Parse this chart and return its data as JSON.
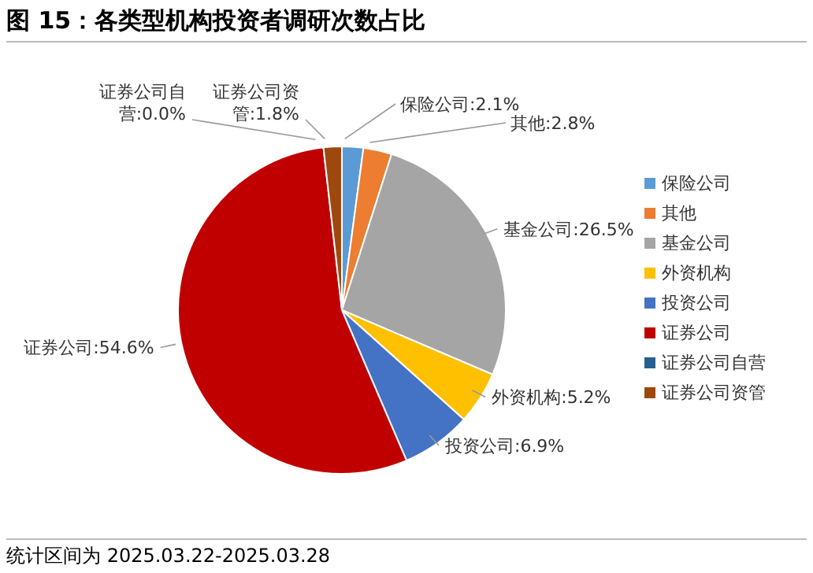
{
  "chart_data": {
    "type": "pie",
    "title": "图 15：各类型机构投资者调研次数占比",
    "categories": [
      "保险公司",
      "其他",
      "基金公司",
      "外资机构",
      "投资公司",
      "证券公司",
      "证券公司自营",
      "证券公司资管"
    ],
    "values": [
      2.1,
      2.8,
      26.5,
      5.2,
      6.9,
      54.6,
      0.0,
      1.8
    ],
    "colors": [
      "#5b9bd5",
      "#ed7d31",
      "#a5a5a5",
      "#ffc000",
      "#4472c4",
      "#c00000",
      "#255e91",
      "#9e480e"
    ],
    "value_labels": [
      "保险公司:2.1%",
      "其他:2.8%",
      "基金公司:26.5%",
      "外资机构:5.2%",
      "投资公司:6.9%",
      "证券公司:54.6%",
      "证券公司自营:0.0%",
      "证券公司资管:1.8%"
    ],
    "legend": "right",
    "annotations": [
      "统计区间为 2025.03.22-2025.03.28"
    ]
  }
}
